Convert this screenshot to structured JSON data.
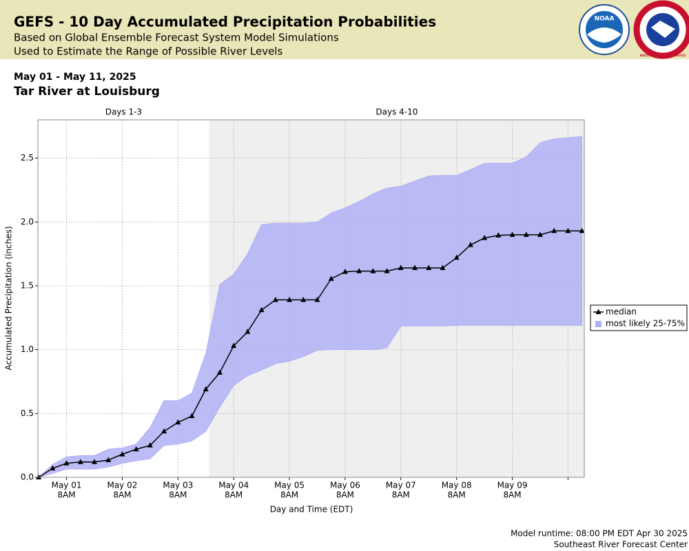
{
  "chart_data": {
    "type": "line",
    "title": "GEFS - 10 Day Accumulated Precipitation Probabilities",
    "subtitle": [
      "Based on Global Ensemble Forecast System Model Simulations",
      "Used to Estimate the Range of Possible River Levels"
    ],
    "logos": [
      "NOAA",
      "NATIONAL WEATHER SERVICE"
    ],
    "date_range": "May 01 - May 11, 2025",
    "location": "Tar River at Louisburg",
    "periods": [
      {
        "label": "Days 1-3"
      },
      {
        "label": "Days 4-10",
        "start": "2025-05-03T21:30"
      }
    ],
    "x_label": "Day and Time (EDT)",
    "y_label": "Accumulated Precipitation (inches)",
    "x": [
      "2025-04-30T20:00",
      "2025-05-01T02:00",
      "2025-05-01T08:00",
      "2025-05-01T14:00",
      "2025-05-01T20:00",
      "2025-05-02T02:00",
      "2025-05-02T08:00",
      "2025-05-02T14:00",
      "2025-05-02T20:00",
      "2025-05-03T02:00",
      "2025-05-03T08:00",
      "2025-05-03T14:00",
      "2025-05-03T20:00",
      "2025-05-04T02:00",
      "2025-05-04T08:00",
      "2025-05-04T14:00",
      "2025-05-04T20:00",
      "2025-05-05T02:00",
      "2025-05-05T08:00",
      "2025-05-05T14:00",
      "2025-05-05T20:00",
      "2025-05-06T02:00",
      "2025-05-06T08:00",
      "2025-05-06T14:00",
      "2025-05-06T20:00",
      "2025-05-07T02:00",
      "2025-05-07T08:00",
      "2025-05-07T14:00",
      "2025-05-07T20:00",
      "2025-05-08T02:00",
      "2025-05-08T08:00",
      "2025-05-08T14:00",
      "2025-05-08T20:00",
      "2025-05-09T02:00",
      "2025-05-09T08:00",
      "2025-05-09T14:00",
      "2025-05-09T20:00",
      "2025-05-10T02:00",
      "2025-05-10T08:00",
      "2025-05-10T14:00"
    ],
    "series": [
      {
        "name": "median",
        "color": "#000000",
        "values": [
          0,
          0.07,
          0.11,
          0.12,
          0.12,
          0.135,
          0.18,
          0.22,
          0.25,
          0.36,
          0.43,
          0.48,
          0.69,
          0.82,
          1.03,
          1.14,
          1.31,
          1.39,
          1.39,
          1.39,
          1.39,
          1.555,
          1.61,
          1.615,
          1.615,
          1.615,
          1.64,
          1.64,
          1.64,
          1.64,
          1.72,
          1.82,
          1.875,
          1.895,
          1.9,
          1.9,
          1.9,
          1.93,
          1.93,
          1.93
        ]
      },
      {
        "name": "most likely 25-75%",
        "color": "#b0b0f6",
        "lower": [
          0,
          0.03,
          0.065,
          0.065,
          0.065,
          0.08,
          0.11,
          0.13,
          0.145,
          0.25,
          0.26,
          0.285,
          0.36,
          0.55,
          0.72,
          0.795,
          0.84,
          0.89,
          0.91,
          0.945,
          0.995,
          1.0,
          1.0,
          1.0,
          1.0,
          1.015,
          1.185,
          1.185,
          1.185,
          1.185,
          1.19,
          1.19,
          1.19,
          1.19,
          1.19,
          1.19,
          1.19,
          1.19,
          1.19,
          1.19
        ],
        "upper": [
          0,
          0.1,
          0.16,
          0.17,
          0.17,
          0.22,
          0.23,
          0.26,
          0.39,
          0.6,
          0.6,
          0.66,
          0.97,
          1.51,
          1.59,
          1.75,
          1.98,
          1.99,
          1.99,
          1.99,
          2.0,
          2.07,
          2.11,
          2.16,
          2.22,
          2.265,
          2.28,
          2.32,
          2.36,
          2.365,
          2.365,
          2.41,
          2.46,
          2.46,
          2.46,
          2.51,
          2.62,
          2.65,
          2.66,
          2.67
        ]
      }
    ],
    "xlim": [
      "2025-04-30T19:40",
      "2025-05-10T15:00"
    ],
    "xticks": [
      {
        "value": "2025-05-01T08:00",
        "label": [
          "May 01",
          "8AM"
        ]
      },
      {
        "value": "2025-05-02T08:00",
        "label": [
          "May 02",
          "8AM"
        ]
      },
      {
        "value": "2025-05-03T08:00",
        "label": [
          "May 03",
          "8AM"
        ]
      },
      {
        "value": "2025-05-04T08:00",
        "label": [
          "May 04",
          "8AM"
        ]
      },
      {
        "value": "2025-05-05T08:00",
        "label": [
          "May 05",
          "8AM"
        ]
      },
      {
        "value": "2025-05-06T08:00",
        "label": [
          "May 06",
          "8AM"
        ]
      },
      {
        "value": "2025-05-07T08:00",
        "label": [
          "May 07",
          "8AM"
        ]
      },
      {
        "value": "2025-05-08T08:00",
        "label": [
          "May 08",
          "8AM"
        ]
      },
      {
        "value": "2025-05-09T08:00",
        "label": [
          "May 09",
          "8AM"
        ]
      },
      {
        "value": "2025-05-10T08:00",
        "label": null
      }
    ],
    "ylim": [
      0,
      2.8
    ],
    "yticks": [
      {
        "value": 0,
        "label": "0.0"
      },
      0.5,
      {
        "value": 1,
        "label": "1.0"
      },
      1.5,
      {
        "value": 2,
        "label": "2.0"
      },
      2.5
    ],
    "grid": true,
    "legend": "right",
    "footer": [
      "Model runtime: 08:00 PM EDT Apr 30 2025",
      "Southeast River Forecast Center"
    ]
  }
}
